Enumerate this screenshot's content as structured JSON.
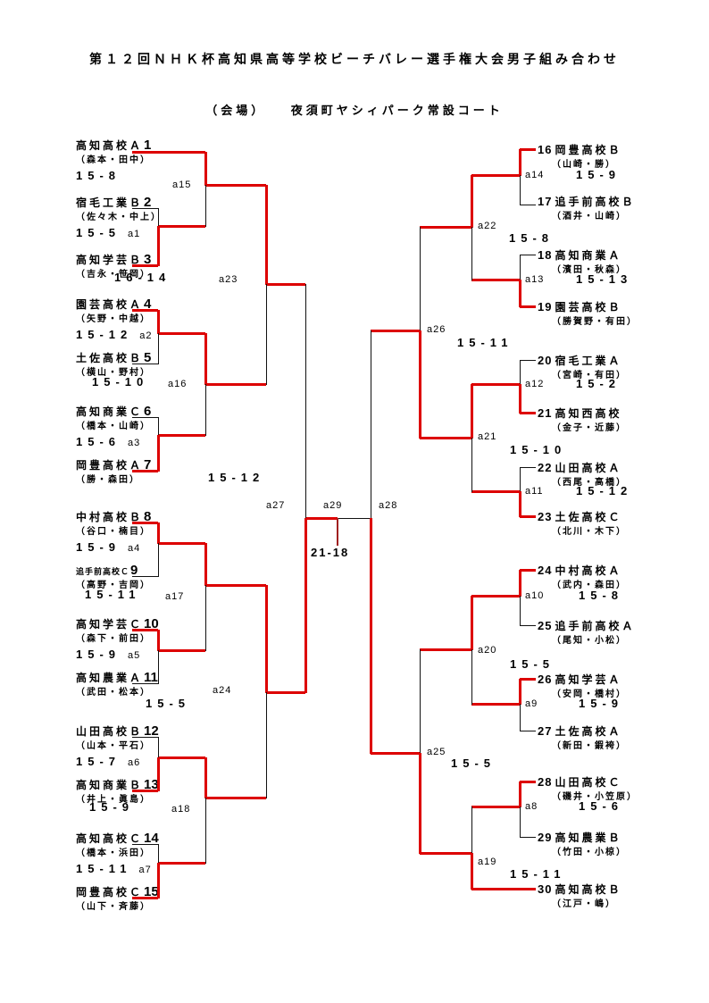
{
  "title": "第１２回ＮＨＫ杯高知県高等学校ビーチバレー選手権大会男子組み合わせ",
  "venue": "（会場）　　夜須町ヤシィパーク常設コート",
  "colors": {
    "winner_line": "#dd0000",
    "line": "#111111"
  },
  "final": {
    "match": "a29",
    "score": "21-18"
  },
  "teams": [
    {
      "num": "1",
      "school": "高知高校Ａ",
      "players": "（森本・田中）",
      "score": "15-8",
      "score_label": ""
    },
    {
      "num": "2",
      "school": "宿毛工業Ｂ",
      "players": "（佐々木・中上）",
      "score": "15-5",
      "score_label": "a1"
    },
    {
      "num": "3",
      "school": "高知学芸Ｂ",
      "players": "（吉永・笹岡）"
    },
    {
      "num": "4",
      "school": "園芸高校Ａ",
      "players": "（矢野・中越）",
      "score": "15-12",
      "score_label": "a2"
    },
    {
      "num": "5",
      "school": "土佐高校Ｂ",
      "players": "（横山・野村）"
    },
    {
      "num": "6",
      "school": "高知商業Ｃ",
      "players": "（橋本・山崎）",
      "score": "15-6",
      "score_label": "a3"
    },
    {
      "num": "7",
      "school": "岡豊高校Ａ",
      "players": "（勝・森田）"
    },
    {
      "num": "8",
      "school": "中村高校Ｂ",
      "players": "（谷口・楠目）",
      "score": "15-9",
      "score_label": "a4"
    },
    {
      "num": "9",
      "school": "追手前高校Ｃ",
      "players": "（高野・吉岡）"
    },
    {
      "num": "10",
      "school": "高知学芸Ｃ",
      "players": "（森下・前田）",
      "score": "15-9",
      "score_label": "a5"
    },
    {
      "num": "11",
      "school": "高知農業Ａ",
      "players": "（武田・松本）"
    },
    {
      "num": "12",
      "school": "山田高校Ｂ",
      "players": "（山本・平石）",
      "score": "15-7",
      "score_label": "a6"
    },
    {
      "num": "13",
      "school": "高知商業Ｂ",
      "players": "（井上・眞島）"
    },
    {
      "num": "14",
      "school": "高知高校Ｃ",
      "players": "（橋本・浜田）",
      "score": "15-11",
      "score_label": "a7"
    },
    {
      "num": "15",
      "school": "岡豊高校Ｃ",
      "players": "（山下・斉藤）"
    },
    {
      "num": "16",
      "school": "岡豊高校Ｂ",
      "players": "（山崎・勝）"
    },
    {
      "num": "17",
      "school": "追手前高校Ｂ",
      "players": "（酒井・山崎）"
    },
    {
      "num": "18",
      "school": "高知商業Ａ",
      "players": "（濱田・秋森）"
    },
    {
      "num": "19",
      "school": "園芸高校Ｂ",
      "players": "（勝賀野・有田）"
    },
    {
      "num": "20",
      "school": "宿毛工業Ａ",
      "players": "（宮崎・有田）"
    },
    {
      "num": "21",
      "school": "高知西高校",
      "players": "（金子・近藤）"
    },
    {
      "num": "22",
      "school": "山田高校Ａ",
      "players": "（西尾・高橋）"
    },
    {
      "num": "23",
      "school": "土佐高校Ｃ",
      "players": "（北川・木下）"
    },
    {
      "num": "24",
      "school": "中村高校Ａ",
      "players": "（武内・森田）"
    },
    {
      "num": "25",
      "school": "追手前高校Ａ",
      "players": "（尾知・小松）"
    },
    {
      "num": "26",
      "school": "高知学芸Ａ",
      "players": "（安岡・橋村）"
    },
    {
      "num": "27",
      "school": "土佐高校Ａ",
      "players": "（新田・鍜袴）"
    },
    {
      "num": "28",
      "school": "山田高校Ｃ",
      "players": "（磯井・小笠原）"
    },
    {
      "num": "29",
      "school": "高知農業Ｂ",
      "players": "（竹田・小椋）"
    },
    {
      "num": "30",
      "school": "高知高校Ｂ",
      "players": "（江戸・嶋）"
    }
  ],
  "matches": {
    "a8": {
      "label": "a8",
      "score": "15-6"
    },
    "a9": {
      "label": "a9",
      "score": "15-9"
    },
    "a10": {
      "label": "a10",
      "score": "15-8"
    },
    "a11": {
      "label": "a11",
      "score": "15-12"
    },
    "a12": {
      "label": "a12",
      "score": "15-2"
    },
    "a13": {
      "label": "a13",
      "score": "15-13"
    },
    "a14": {
      "label": "a14",
      "score": "15-9"
    },
    "a15": {
      "label": "a15",
      "score": ""
    },
    "a16": {
      "label": "a16",
      "score": "15-10"
    },
    "a17": {
      "label": "a17",
      "score": "15-11"
    },
    "a18": {
      "label": "a18",
      "score": "15-9"
    },
    "a19": {
      "label": "a19",
      "score": "15-11"
    },
    "a20": {
      "label": "a20",
      "score": "15-5"
    },
    "a21": {
      "label": "a21",
      "score": "15-10"
    },
    "a22": {
      "label": "a22",
      "score": "15-8"
    },
    "a23": {
      "label": "a23",
      "score": "16-14"
    },
    "a24": {
      "label": "a24",
      "score": "15-5"
    },
    "a25": {
      "label": "a25",
      "score": "15-5"
    },
    "a26": {
      "label": "a26",
      "score": "15-11"
    },
    "a27": {
      "label": "a27",
      "score": "15-12"
    },
    "a28": {
      "label": "a28",
      "score": ""
    },
    "a29": {
      "label": "a29",
      "score": "21-18"
    }
  }
}
